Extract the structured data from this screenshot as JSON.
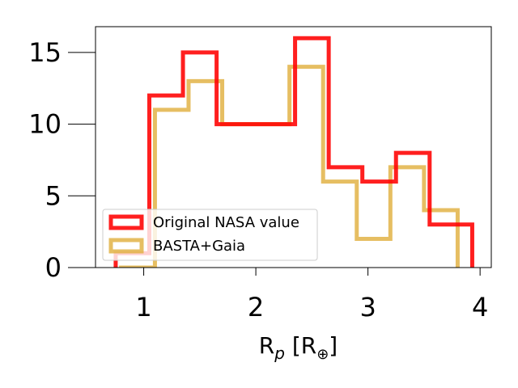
{
  "chart_data": {
    "type": "histogram",
    "xlabel": {
      "main": "R",
      "sub": "p",
      "bracket": "[R",
      "symbol": "⊕",
      "close": "]"
    },
    "ylabel": "",
    "title": "",
    "xlim": [
      0.57,
      4.1
    ],
    "ylim": [
      0,
      16.8
    ],
    "xticks": [
      1,
      2,
      3,
      4
    ],
    "yticks": [
      0,
      5,
      10,
      15
    ],
    "grid": false,
    "legend_position": "lower-left",
    "series": [
      {
        "name": "Original NASA value",
        "color": "#ff0000",
        "bin_edges": [
          0.75,
          1.05,
          1.35,
          1.65,
          1.95,
          2.25,
          2.35,
          2.65,
          2.95,
          3.25,
          3.55,
          3.8,
          3.93
        ],
        "counts": [
          1,
          12,
          15,
          10,
          10,
          10,
          16,
          7,
          6,
          8,
          3,
          3
        ]
      },
      {
        "name": "BASTA+Gaia",
        "color": "#e0b040",
        "bin_edges": [
          0.78,
          1.1,
          1.4,
          1.7,
          2.0,
          2.3,
          2.6,
          2.9,
          3.2,
          3.5,
          3.8
        ],
        "counts": [
          0,
          11,
          13,
          10,
          10,
          14,
          6,
          2,
          7,
          4
        ]
      }
    ]
  }
}
